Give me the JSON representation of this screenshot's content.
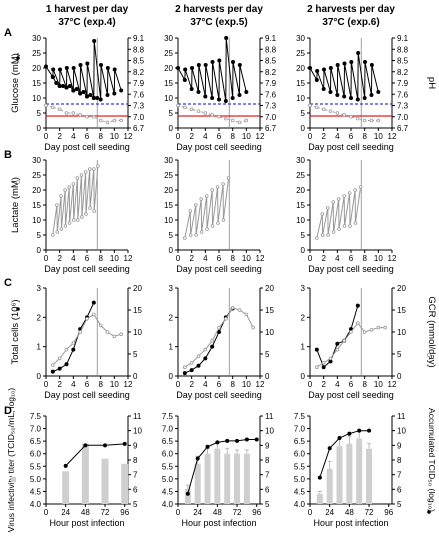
{
  "columns": [
    {
      "title": "1 harvest per day",
      "temp": "37°C (exp.4)"
    },
    {
      "title": "2 harvests per day",
      "temp": "37°C (exp.5)"
    },
    {
      "title": "2 harvests per day",
      "temp": "37°C (exp.6)"
    }
  ],
  "rows": [
    {
      "letter": "A",
      "xlabel": "Day post cell seeding",
      "ylabel": "Glucose (mM)",
      "y2label": "pH"
    },
    {
      "letter": "B",
      "xlabel": "Day post cell seeding",
      "ylabel": "Lactate (mM)",
      "y2label": ""
    },
    {
      "letter": "C",
      "xlabel": "Day post cell seeding",
      "ylabel": "Total cells (10⁶)",
      "y2label": "GCR (mmol/day)"
    },
    {
      "letter": "D",
      "xlabel": "Hour post infection",
      "ylabel": "Virus infectivity titer (TCID₅₀/mL, log₁₀)",
      "y2label": "Accumulated TCID₅₀ (log₁₀)"
    }
  ],
  "axes": {
    "glucose": {
      "yticks": [
        0,
        5,
        10,
        15,
        20,
        25,
        30
      ],
      "y2ticks": [
        "6.7",
        "7.0",
        "7.3",
        "7.6",
        "7.9",
        "8.2",
        "8.5",
        "8.8",
        "9.1"
      ],
      "xticks": [
        0,
        2,
        4,
        6,
        8,
        10,
        12
      ]
    },
    "lactate": {
      "yticks": [
        0,
        5,
        10,
        15,
        20,
        25,
        30
      ],
      "xticks": [
        0,
        2,
        4,
        6,
        8,
        10,
        12
      ]
    },
    "cells": {
      "yticks": [
        0,
        1,
        2,
        3
      ],
      "y2ticks": [
        0,
        5,
        10,
        15,
        20
      ],
      "xticks": [
        0,
        2,
        4,
        6,
        8,
        10,
        12
      ]
    },
    "titer": {
      "yticks": [
        "4.0",
        "4.5",
        "5.0",
        "5.5",
        "6.0",
        "6.5",
        "7.0",
        "7.5"
      ],
      "y2ticks": [
        5,
        6,
        7,
        8,
        9,
        10,
        11
      ],
      "xticks": [
        0,
        24,
        48,
        72,
        96
      ]
    }
  },
  "chart_data": [
    {
      "type": "line",
      "row": "A",
      "col": 0,
      "title": "1 harvest per day",
      "xlabel": "Day post cell seeding",
      "ylabel": "Glucose (mM)",
      "y2label": "pH",
      "xlim": [
        0,
        12
      ],
      "ylim": [
        0,
        30
      ],
      "y2lim": [
        6.7,
        9.1
      ],
      "infection_day": 7.5,
      "series": [
        {
          "name": "Glucose",
          "marker": "filled-circle",
          "color": "#000000",
          "x": [
            0,
            1,
            1.05,
            2,
            2.05,
            3,
            3.05,
            4,
            4.05,
            5,
            5.05,
            6,
            6.05,
            7,
            7.05,
            8,
            8.05,
            9,
            9.05,
            10,
            10.05,
            11
          ],
          "y": [
            20.5,
            17,
            19.5,
            14,
            19.5,
            13.5,
            20,
            12.5,
            20,
            11.5,
            21,
            10.5,
            21.5,
            10,
            29,
            9.5,
            21,
            11,
            20,
            11.5,
            19.5,
            12.5
          ]
        },
        {
          "name": "Glucose lower",
          "marker": "filled-circle",
          "color": "#000000",
          "x": [
            1,
            1.5,
            2,
            2.5,
            3,
            3.5,
            4,
            4.5,
            5,
            5.5,
            6,
            6.5,
            7,
            7.5
          ],
          "y": [
            17,
            15,
            14,
            14,
            13.5,
            14,
            12.5,
            13,
            11.5,
            12,
            10.5,
            11,
            10,
            10
          ]
        },
        {
          "name": "pH",
          "marker": "open-circle",
          "color": "#999999",
          "x": [
            0,
            1,
            2,
            3,
            4,
            5,
            6,
            7,
            8,
            9,
            10,
            11
          ],
          "y": [
            7.3,
            7.25,
            7.2,
            7.1,
            7.1,
            7.05,
            7.0,
            7.0,
            6.9,
            6.85,
            6.9,
            6.9
          ]
        }
      ],
      "reference_lines": [
        {
          "axis": "y",
          "value": 8,
          "color": "#3b3bd6",
          "style": "dashed"
        },
        {
          "axis": "y",
          "value": 4,
          "color": "#e02020",
          "style": "solid"
        }
      ]
    },
    {
      "type": "line",
      "row": "A",
      "col": 1,
      "title": "2 harvests per day",
      "xlabel": "Day post cell seeding",
      "ylabel": "Glucose (mM)",
      "y2label": "pH",
      "xlim": [
        0,
        12
      ],
      "ylim": [
        0,
        30
      ],
      "y2lim": [
        6.7,
        9.1
      ],
      "infection_day": 7.5,
      "series": [
        {
          "name": "Glucose",
          "marker": "filled-circle",
          "color": "#000000",
          "x": [
            0,
            1,
            1.05,
            2,
            2.05,
            3,
            3.05,
            4,
            4.05,
            5,
            5.05,
            6,
            6.05,
            7,
            7.05,
            8,
            8.05,
            9,
            9.05,
            10
          ],
          "y": [
            20,
            16,
            19.5,
            13,
            20,
            12,
            21,
            10.5,
            21,
            10,
            22,
            9.5,
            22.5,
            9,
            30,
            10,
            22,
            11,
            21,
            12
          ]
        },
        {
          "name": "pH",
          "marker": "open-circle",
          "color": "#999999",
          "x": [
            0,
            1,
            2,
            3,
            4,
            5,
            6,
            7,
            8,
            9,
            10
          ],
          "y": [
            7.3,
            7.25,
            7.2,
            7.15,
            7.1,
            7.05,
            7.0,
            6.95,
            6.9,
            6.85,
            6.9
          ]
        }
      ],
      "reference_lines": [
        {
          "axis": "y",
          "value": 8,
          "color": "#3b3bd6",
          "style": "dashed"
        },
        {
          "axis": "y",
          "value": 4,
          "color": "#e02020",
          "style": "solid"
        }
      ]
    },
    {
      "type": "line",
      "row": "A",
      "col": 2,
      "title": "2 harvests per day",
      "xlabel": "Day post cell seeding",
      "ylabel": "Glucose (mM)",
      "y2label": "pH",
      "xlim": [
        0,
        12
      ],
      "ylim": [
        0,
        30
      ],
      "y2lim": [
        6.7,
        9.1
      ],
      "infection_day": 7.5,
      "series": [
        {
          "name": "Glucose",
          "marker": "filled-circle",
          "color": "#000000",
          "x": [
            0,
            1,
            1.05,
            2,
            2.05,
            3,
            3.05,
            4,
            4.05,
            5,
            5.05,
            6,
            6.05,
            7,
            7.05,
            8,
            8.05,
            9,
            9.05,
            10
          ],
          "y": [
            20,
            16,
            19,
            13,
            19.5,
            12,
            20,
            11,
            21,
            10.5,
            21.5,
            10,
            22,
            9.5,
            25,
            10,
            22,
            11,
            21,
            12
          ]
        },
        {
          "name": "pH",
          "marker": "open-circle",
          "color": "#999999",
          "x": [
            0,
            1,
            2,
            3,
            4,
            5,
            6,
            7,
            8,
            9,
            10
          ],
          "y": [
            7.3,
            7.25,
            7.2,
            7.15,
            7.1,
            7.05,
            7.0,
            6.95,
            6.9,
            6.9,
            6.9
          ]
        }
      ],
      "reference_lines": [
        {
          "axis": "y",
          "value": 8,
          "color": "#3b3bd6",
          "style": "dashed"
        },
        {
          "axis": "y",
          "value": 4,
          "color": "#e02020",
          "style": "solid"
        }
      ]
    },
    {
      "type": "line",
      "row": "B",
      "col": 0,
      "xlabel": "Day post cell seeding",
      "ylabel": "Lactate (mM)",
      "xlim": [
        0,
        12
      ],
      "ylim": [
        0,
        30
      ],
      "infection_day": 7.5,
      "series": [
        {
          "name": "Lactate",
          "marker": "open-circle",
          "color": "#999999",
          "x": [
            1,
            1.6,
            1.65,
            2.2,
            2.25,
            2.8,
            2.85,
            3.4,
            3.45,
            4.0,
            4.05,
            4.6,
            4.65,
            5.2,
            5.25,
            5.8,
            5.85,
            6.4,
            6.45,
            7.0,
            7.05,
            7.6
          ],
          "y": [
            5,
            15,
            6,
            18,
            7,
            20,
            8,
            21,
            9,
            22,
            10,
            24,
            10,
            25,
            11,
            26,
            12,
            27,
            14,
            27,
            13,
            28
          ]
        }
      ]
    },
    {
      "type": "line",
      "row": "B",
      "col": 1,
      "xlabel": "Day post cell seeding",
      "ylabel": "Lactate (mM)",
      "xlim": [
        0,
        12
      ],
      "ylim": [
        0,
        30
      ],
      "infection_day": 7.5,
      "series": [
        {
          "name": "Lactate",
          "marker": "open-circle",
          "color": "#999999",
          "x": [
            1,
            1.8,
            1.85,
            2.6,
            2.65,
            3.4,
            3.45,
            4.2,
            4.25,
            5.0,
            5.05,
            5.8,
            5.85,
            6.6,
            6.65,
            7.4
          ],
          "y": [
            4,
            13,
            5,
            15,
            5,
            17,
            6,
            18,
            7,
            20,
            8,
            21,
            9,
            22,
            10,
            24
          ]
        }
      ]
    },
    {
      "type": "line",
      "row": "B",
      "col": 2,
      "xlabel": "Day post cell seeding",
      "ylabel": "Lactate (mM)",
      "xlim": [
        0,
        12
      ],
      "ylim": [
        0,
        30
      ],
      "infection_day": 7.5,
      "series": [
        {
          "name": "Lactate",
          "marker": "open-circle",
          "color": "#999999",
          "x": [
            1,
            1.8,
            1.85,
            2.6,
            2.65,
            3.4,
            3.45,
            4.2,
            4.25,
            5.0,
            5.05,
            5.8,
            5.85,
            6.6,
            6.65,
            7.4
          ],
          "y": [
            4,
            12,
            5,
            14,
            5,
            16,
            6,
            17,
            7,
            18,
            8,
            19,
            8,
            20,
            9,
            21
          ]
        }
      ]
    },
    {
      "type": "line",
      "row": "C",
      "col": 0,
      "xlabel": "Day post cell seeding",
      "ylabel": "Total cells (10⁶)",
      "y2label": "GCR (mmol/day)",
      "xlim": [
        0,
        12
      ],
      "ylim": [
        0,
        3
      ],
      "y2lim": [
        0,
        20
      ],
      "infection_day": 7.5,
      "series": [
        {
          "name": "Total cells",
          "marker": "filled-circle",
          "color": "#000000",
          "x": [
            1,
            2,
            3,
            4,
            5,
            6,
            7
          ],
          "y": [
            0.15,
            0.25,
            0.4,
            0.9,
            1.6,
            2.0,
            2.5
          ]
        },
        {
          "name": "GCR",
          "marker": "open-circle",
          "color": "#999999",
          "axis": "y2",
          "x": [
            1,
            2,
            3,
            4,
            5,
            6,
            7,
            8,
            9,
            10,
            11
          ],
          "y": [
            2.5,
            4,
            6,
            7.5,
            10,
            13,
            14,
            11.5,
            10,
            9,
            9.5
          ]
        }
      ]
    },
    {
      "type": "line",
      "row": "C",
      "col": 1,
      "xlabel": "Day post cell seeding",
      "ylabel": "Total cells (10⁶)",
      "y2label": "GCR (mmol/day)",
      "xlim": [
        0,
        12
      ],
      "ylim": [
        0,
        3
      ],
      "y2lim": [
        0,
        20
      ],
      "infection_day": 7.5,
      "series": [
        {
          "name": "Total cells",
          "marker": "filled-circle",
          "color": "#000000",
          "x": [
            1,
            2,
            3,
            4,
            5,
            6,
            7,
            8
          ],
          "y": [
            0.1,
            0.2,
            0.35,
            0.6,
            1.0,
            1.5,
            2.0,
            2.3
          ]
        },
        {
          "name": "GCR",
          "marker": "open-circle",
          "color": "#999999",
          "axis": "y2",
          "x": [
            1,
            2,
            3,
            4,
            5,
            6,
            7,
            8,
            9,
            10,
            11
          ],
          "y": [
            2,
            3,
            4.5,
            6,
            8,
            11,
            13,
            15.5,
            15,
            14,
            11
          ]
        }
      ]
    },
    {
      "type": "line",
      "row": "C",
      "col": 2,
      "xlabel": "Day post cell seeding",
      "ylabel": "Total cells (10⁶)",
      "y2label": "GCR (mmol/day)",
      "xlim": [
        0,
        12
      ],
      "ylim": [
        0,
        3
      ],
      "y2lim": [
        0,
        20
      ],
      "infection_day": 7.5,
      "series": [
        {
          "name": "Total cells",
          "marker": "filled-circle",
          "color": "#000000",
          "x": [
            1,
            2,
            3,
            4,
            5,
            6,
            7
          ],
          "y": [
            0.9,
            0.3,
            0.5,
            1.1,
            1.2,
            1.6,
            2.4
          ]
        },
        {
          "name": "GCR",
          "marker": "open-circle",
          "color": "#999999",
          "axis": "y2",
          "x": [
            1,
            2,
            3,
            4,
            5,
            6,
            7,
            8,
            9,
            10,
            11
          ],
          "y": [
            2,
            3,
            4,
            6,
            8,
            10,
            12,
            10,
            10.5,
            11,
            11
          ]
        }
      ]
    },
    {
      "type": "bar",
      "row": "D",
      "col": 0,
      "xlabel": "Hour post infection",
      "ylabel": "Virus infectivity titer (TCID₅₀/mL, log₁₀)",
      "y2label": "Accumulated TCID₅₀ (log₁₀)",
      "ylim": [
        4.0,
        7.5
      ],
      "y2lim": [
        5,
        11
      ],
      "xlim": [
        0,
        100
      ],
      "bars": {
        "x": [
          24,
          48,
          72,
          96
        ],
        "values": [
          5.3,
          6.4,
          5.8,
          5.6
        ],
        "errors": [
          0,
          0,
          0,
          0
        ]
      },
      "series": [
        {
          "name": "Accumulated TCID50",
          "marker": "filled-circle",
          "color": "#000000",
          "axis": "y2",
          "x": [
            24,
            48,
            72,
            96
          ],
          "y": [
            7.6,
            9.0,
            9.0,
            9.1
          ]
        }
      ]
    },
    {
      "type": "bar",
      "row": "D",
      "col": 1,
      "xlabel": "Hour post infection",
      "ylabel": "Virus infectivity titer (TCID₅₀/mL, log₁₀)",
      "y2label": "Accumulated TCID₅₀ (log₁₀)",
      "ylim": [
        4.0,
        7.5
      ],
      "y2lim": [
        5,
        11
      ],
      "xlim": [
        0,
        100
      ],
      "bars": {
        "x": [
          12,
          24,
          36,
          48,
          60,
          72,
          84
        ],
        "values": [
          4.6,
          5.6,
          6.0,
          6.2,
          6.0,
          6.0,
          6.0
        ],
        "errors": [
          0.15,
          0.3,
          0.2,
          0.2,
          0.2,
          0.15,
          0.15
        ]
      },
      "series": [
        {
          "name": "Accumulated TCID50",
          "marker": "filled-circle",
          "color": "#000000",
          "axis": "y2",
          "x": [
            12,
            24,
            36,
            48,
            60,
            72,
            84,
            96
          ],
          "y": [
            5.7,
            8.1,
            8.9,
            9.2,
            9.3,
            9.3,
            9.4,
            9.4
          ]
        }
      ]
    },
    {
      "type": "bar",
      "row": "D",
      "col": 2,
      "xlabel": "Hour post infection",
      "ylabel": "Virus infectivity titer (TCID₅₀/mL, log₁₀)",
      "y2label": "Accumulated TCID₅₀ (log₁₀)",
      "ylim": [
        4.0,
        7.5
      ],
      "y2lim": [
        5,
        11
      ],
      "xlim": [
        0,
        100
      ],
      "bars": {
        "x": [
          12,
          24,
          36,
          48,
          60,
          72
        ],
        "values": [
          4.4,
          5.4,
          6.3,
          6.4,
          6.6,
          6.2
        ],
        "errors": [
          0.1,
          0.3,
          0.35,
          0.3,
          0.3,
          0.2
        ]
      },
      "series": [
        {
          "name": "Accumulated TCID50",
          "marker": "filled-circle",
          "color": "#000000",
          "axis": "y2",
          "x": [
            12,
            24,
            36,
            48,
            60,
            72
          ],
          "y": [
            6.8,
            8.8,
            9.5,
            9.8,
            10.0,
            10.0
          ]
        }
      ]
    }
  ]
}
